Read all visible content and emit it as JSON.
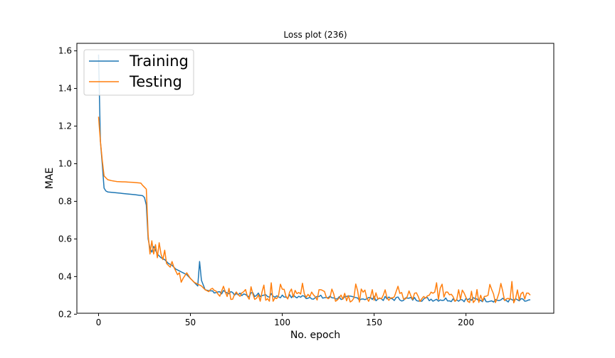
{
  "chart_data": {
    "type": "line",
    "title": "Loss plot (236)",
    "xlabel": "No. epoch",
    "ylabel": "MAE",
    "xlim": [
      -11.8,
      247.8
    ],
    "ylim": [
      0.205,
      1.64
    ],
    "xticks": [
      0,
      50,
      100,
      150,
      200
    ],
    "yticks": [
      0.2,
      0.4,
      0.6,
      0.8,
      1.0,
      1.2,
      1.4,
      1.6
    ],
    "grid": false,
    "legend_position": "top-left",
    "colors": {
      "Training": "#1f77b4",
      "Testing": "#ff7f0e"
    },
    "series": [
      {
        "name": "Training",
        "keypoints": [
          [
            0,
            1.58
          ],
          [
            1,
            1.12
          ],
          [
            2,
            1.0
          ],
          [
            3,
            0.87
          ],
          [
            4,
            0.855
          ],
          [
            5,
            0.85
          ],
          [
            10,
            0.845
          ],
          [
            15,
            0.84
          ],
          [
            20,
            0.835
          ],
          [
            24,
            0.83
          ],
          [
            25,
            0.82
          ],
          [
            26,
            0.78
          ],
          [
            27,
            0.6
          ],
          [
            28,
            0.55
          ],
          [
            29,
            0.53
          ],
          [
            30,
            0.56
          ],
          [
            32,
            0.52
          ],
          [
            34,
            0.5
          ],
          [
            36,
            0.49
          ],
          [
            38,
            0.47
          ],
          [
            40,
            0.46
          ],
          [
            42,
            0.44
          ],
          [
            44,
            0.43
          ],
          [
            46,
            0.42
          ],
          [
            48,
            0.41
          ],
          [
            50,
            0.39
          ],
          [
            52,
            0.37
          ],
          [
            54,
            0.35
          ],
          [
            55,
            0.48
          ],
          [
            56,
            0.38
          ],
          [
            58,
            0.33
          ],
          [
            60,
            0.325
          ],
          [
            65,
            0.32
          ],
          [
            70,
            0.315
          ],
          [
            80,
            0.305
          ],
          [
            90,
            0.3
          ],
          [
            100,
            0.295
          ],
          [
            120,
            0.29
          ],
          [
            140,
            0.285
          ],
          [
            160,
            0.282
          ],
          [
            180,
            0.28
          ],
          [
            200,
            0.278
          ],
          [
            220,
            0.275
          ],
          [
            235,
            0.27
          ]
        ],
        "noise_amplitude_after_60": 0.012
      },
      {
        "name": "Testing",
        "keypoints": [
          [
            0,
            1.25
          ],
          [
            1,
            1.12
          ],
          [
            2,
            1.02
          ],
          [
            3,
            0.935
          ],
          [
            4,
            0.925
          ],
          [
            5,
            0.915
          ],
          [
            7,
            0.91
          ],
          [
            10,
            0.905
          ],
          [
            15,
            0.903
          ],
          [
            20,
            0.9
          ],
          [
            23,
            0.897
          ],
          [
            24,
            0.885
          ],
          [
            25,
            0.875
          ],
          [
            26,
            0.865
          ],
          [
            27,
            0.62
          ],
          [
            28,
            0.52
          ],
          [
            29,
            0.59
          ],
          [
            30,
            0.52
          ],
          [
            31,
            0.57
          ],
          [
            32,
            0.5
          ],
          [
            33,
            0.58
          ],
          [
            34,
            0.52
          ],
          [
            35,
            0.49
          ],
          [
            36,
            0.54
          ],
          [
            37,
            0.47
          ],
          [
            38,
            0.46
          ],
          [
            39,
            0.45
          ],
          [
            40,
            0.48
          ],
          [
            41,
            0.45
          ],
          [
            42,
            0.43
          ],
          [
            43,
            0.41
          ],
          [
            44,
            0.42
          ],
          [
            45,
            0.37
          ],
          [
            46,
            0.39
          ],
          [
            48,
            0.42
          ],
          [
            50,
            0.39
          ],
          [
            52,
            0.37
          ],
          [
            54,
            0.36
          ],
          [
            56,
            0.35
          ],
          [
            58,
            0.33
          ],
          [
            60,
            0.32
          ]
        ],
        "noise_amplitude_after_60": 0.035,
        "mean_after_60": 0.3
      }
    ],
    "x_count": 236
  }
}
